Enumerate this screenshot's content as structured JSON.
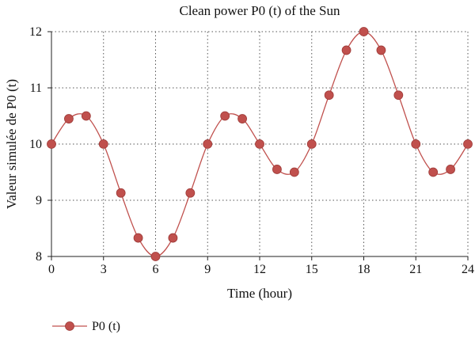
{
  "chart_data": {
    "type": "line",
    "title": "Clean power P0 (t) of the Sun",
    "xlabel": "Time (hour)",
    "ylabel": "Valeur simulée de P0 (t)",
    "xlim": [
      0,
      24
    ],
    "ylim": [
      8,
      12
    ],
    "xticks": [
      0,
      3,
      6,
      9,
      12,
      15,
      18,
      21,
      24
    ],
    "yticks": [
      8,
      9,
      10,
      11,
      12
    ],
    "xtick_labels": [
      "0",
      "3",
      "6",
      "9",
      "12",
      "15",
      "18",
      "21",
      "24"
    ],
    "ytick_labels": [
      "8",
      "9",
      "10",
      "11",
      "12"
    ],
    "grid": true,
    "legend_position": "bottom-left",
    "colors": {
      "line": "#c0504d",
      "marker": "#c0504d",
      "marker_edge": "#9e3b38"
    },
    "series": [
      {
        "name": "P0 (t)",
        "x": [
          0,
          1,
          2,
          3,
          4,
          5,
          6,
          7,
          8,
          9,
          10,
          11,
          12,
          13,
          14,
          15,
          16,
          17,
          18,
          19,
          20,
          21,
          22,
          23,
          24
        ],
        "y": [
          10,
          10.45,
          10.5,
          10,
          9.13,
          8.33,
          8,
          8.33,
          9.13,
          10,
          10.5,
          10.45,
          10,
          9.55,
          9.5,
          10,
          10.87,
          11.67,
          12,
          11.67,
          10.87,
          10,
          9.5,
          9.55,
          10
        ]
      }
    ]
  }
}
